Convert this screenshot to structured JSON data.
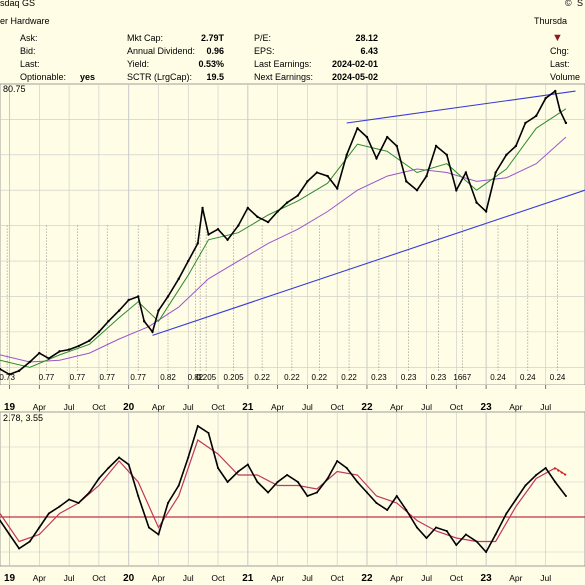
{
  "header": {
    "exchange": "sdaq GS",
    "sector": "er Hardware",
    "right_title": "Thursda",
    "chg_label": "Chg:",
    "last_label_r": "Last:",
    "volume_label": "Volume",
    "col1": [
      {
        "label": "Ask:",
        "value": ""
      },
      {
        "label": "Bid:",
        "value": ""
      },
      {
        "label": "Last:",
        "value": ""
      },
      {
        "label": "Optionable:",
        "value": "yes"
      }
    ],
    "col2": [
      {
        "label": "Mkt Cap:",
        "value": "2.79T"
      },
      {
        "label": "Annual Dividend:",
        "value": "0.96"
      },
      {
        "label": "Yield:",
        "value": "0.53%"
      },
      {
        "label": "SCTR (LrgCap):",
        "value": "19.5"
      }
    ],
    "col3": [
      {
        "label": "P/E:",
        "value": "28.12"
      },
      {
        "label": "EPS:",
        "value": "6.43"
      },
      {
        "label": "Last Earnings:",
        "value": "2024-02-01"
      },
      {
        "label": "Next Earnings:",
        "value": "2024-05-02"
      }
    ],
    "copyright_glyph": "©",
    "corner_s": "S"
  },
  "chart_data": [
    {
      "type": "line",
      "panel": "price",
      "legend_text": "80.75",
      "x_unit": "fractional year",
      "close": {
        "x": [
          2018.92,
          2019.0,
          2019.08,
          2019.17,
          2019.25,
          2019.33,
          2019.42,
          2019.5,
          2019.58,
          2019.67,
          2019.75,
          2019.83,
          2019.92,
          2020.0,
          2020.08,
          2020.13,
          2020.2,
          2020.25,
          2020.33,
          2020.42,
          2020.5,
          2020.58,
          2020.62,
          2020.67,
          2020.75,
          2020.83,
          2020.92,
          2021.0,
          2021.08,
          2021.17,
          2021.25,
          2021.33,
          2021.42,
          2021.5,
          2021.58,
          2021.67,
          2021.75,
          2021.83,
          2021.92,
          2022.0,
          2022.08,
          2022.17,
          2022.25,
          2022.33,
          2022.42,
          2022.5,
          2022.58,
          2022.67,
          2022.75,
          2022.83,
          2022.92,
          2023.0,
          2023.08,
          2023.17,
          2023.25,
          2023.33,
          2023.42,
          2023.5,
          2023.58,
          2023.62,
          2023.67
        ],
        "y": [
          39,
          36,
          38,
          43,
          48,
          45,
          49,
          50,
          52,
          55,
          60,
          66,
          72,
          78,
          80,
          66,
          60,
          72,
          80,
          90,
          100,
          110,
          130,
          115,
          118,
          112,
          120,
          130,
          125,
          122,
          128,
          133,
          137,
          145,
          150,
          148,
          141,
          160,
          175,
          170,
          158,
          170,
          165,
          145,
          140,
          148,
          165,
          160,
          140,
          150,
          133,
          128,
          150,
          160,
          165,
          178,
          182,
          192,
          196,
          185,
          178
        ]
      },
      "sma50": {
        "x": [
          2018.92,
          2019.17,
          2019.42,
          2019.67,
          2019.92,
          2020.08,
          2020.25,
          2020.5,
          2020.67,
          2020.92,
          2021.17,
          2021.42,
          2021.67,
          2021.92,
          2022.17,
          2022.42,
          2022.67,
          2022.92,
          2023.17,
          2023.42,
          2023.67
        ],
        "y": [
          44,
          40,
          47,
          53,
          68,
          77,
          66,
          92,
          112,
          116,
          126,
          134,
          144,
          166,
          162,
          150,
          155,
          140,
          152,
          175,
          186
        ]
      },
      "sma200": {
        "x": [
          2018.92,
          2019.17,
          2019.42,
          2019.67,
          2019.92,
          2020.17,
          2020.42,
          2020.67,
          2020.92,
          2021.17,
          2021.42,
          2021.67,
          2021.92,
          2022.17,
          2022.42,
          2022.67,
          2022.92,
          2023.17,
          2023.42,
          2023.67
        ],
        "y": [
          47,
          43,
          44,
          48,
          56,
          63,
          74,
          90,
          100,
          110,
          118,
          128,
          140,
          148,
          152,
          150,
          145,
          147,
          155,
          170
        ]
      },
      "trendlines": [
        {
          "x": [
            2020.2,
            2023.83
          ],
          "y": [
            58,
            140
          ]
        },
        {
          "x": [
            2021.83,
            2023.75
          ],
          "y": [
            178,
            196
          ]
        }
      ],
      "dividends": [
        {
          "x": 2018.98,
          "label": "0.73"
        },
        {
          "x": 2019.31,
          "label": "0.77"
        },
        {
          "x": 2019.57,
          "label": "0.77"
        },
        {
          "x": 2019.82,
          "label": "0.77"
        },
        {
          "x": 2020.08,
          "label": "0.77"
        },
        {
          "x": 2020.33,
          "label": "0.82"
        },
        {
          "x": 2020.56,
          "label": "0.82"
        },
        {
          "x": 2020.6,
          "label": "1"
        },
        {
          "x": 2020.65,
          "label": "0.205"
        },
        {
          "x": 2020.88,
          "label": "0.205"
        },
        {
          "x": 2021.12,
          "label": "0.22"
        },
        {
          "x": 2021.37,
          "label": "0.22"
        },
        {
          "x": 2021.6,
          "label": "0.22"
        },
        {
          "x": 2021.85,
          "label": "0.22"
        },
        {
          "x": 2022.1,
          "label": "0.23"
        },
        {
          "x": 2022.35,
          "label": "0.23"
        },
        {
          "x": 2022.6,
          "label": "0.23"
        },
        {
          "x": 2022.8,
          "label": "1667"
        },
        {
          "x": 2023.1,
          "label": "0.24"
        },
        {
          "x": 2023.35,
          "label": "0.24"
        },
        {
          "x": 2023.6,
          "label": "0.24"
        }
      ],
      "ylim": [
        30,
        200
      ]
    },
    {
      "type": "line",
      "panel": "indicator",
      "legend_text": "2.78, 3.55",
      "macd": {
        "x": [
          2018.92,
          2019.0,
          2019.08,
          2019.17,
          2019.25,
          2019.33,
          2019.42,
          2019.5,
          2019.58,
          2019.67,
          2019.75,
          2019.83,
          2019.92,
          2020.0,
          2020.08,
          2020.17,
          2020.25,
          2020.33,
          2020.42,
          2020.5,
          2020.58,
          2020.67,
          2020.75,
          2020.83,
          2020.92,
          2021.0,
          2021.08,
          2021.17,
          2021.25,
          2021.33,
          2021.42,
          2021.5,
          2021.58,
          2021.67,
          2021.75,
          2021.83,
          2021.92,
          2022.0,
          2022.08,
          2022.17,
          2022.25,
          2022.33,
          2022.42,
          2022.5,
          2022.58,
          2022.67,
          2022.75,
          2022.83,
          2022.92,
          2023.0,
          2023.08,
          2023.17,
          2023.25,
          2023.33,
          2023.42,
          2023.5,
          2023.58,
          2023.67
        ],
        "y": [
          -1,
          -5,
          -9,
          -7,
          -3,
          1,
          3,
          5,
          4,
          7,
          11,
          14,
          17,
          15,
          6,
          -3,
          -5,
          4,
          9,
          17,
          26,
          24,
          14,
          10,
          13,
          15,
          10,
          7,
          10,
          12,
          10,
          6,
          7,
          11,
          16,
          14,
          10,
          7,
          4,
          2,
          6,
          2,
          -3,
          -6,
          -3,
          -4,
          -8,
          -5,
          -7,
          -10,
          -5,
          1,
          5,
          9,
          12,
          14,
          10,
          6
        ]
      },
      "signal": {
        "x": [
          2018.92,
          2019.08,
          2019.25,
          2019.42,
          2019.58,
          2019.75,
          2019.92,
          2020.08,
          2020.25,
          2020.42,
          2020.58,
          2020.75,
          2020.92,
          2021.08,
          2021.25,
          2021.42,
          2021.58,
          2021.75,
          2021.92,
          2022.08,
          2022.25,
          2022.42,
          2022.58,
          2022.75,
          2022.92,
          2023.08,
          2023.25,
          2023.42,
          2023.58,
          2023.67
        ],
        "y": [
          1,
          -7,
          -5,
          1,
          4,
          9,
          16,
          10,
          -3,
          6,
          22,
          18,
          12,
          12,
          9,
          9,
          8,
          13,
          12,
          6,
          4,
          -1,
          -4,
          -6,
          -7,
          -7,
          3,
          11,
          14,
          12
        ]
      },
      "dotted": {
        "x": [
          2023.57,
          2023.67
        ],
        "y": [
          14,
          12
        ]
      },
      "zero_line": 0,
      "ylim": [
        -14,
        30
      ]
    }
  ],
  "x_ticks": [
    {
      "x": 2019.0,
      "label": "19",
      "major": true
    },
    {
      "x": 2019.25,
      "label": "Apr",
      "major": false
    },
    {
      "x": 2019.5,
      "label": "Jul",
      "major": false
    },
    {
      "x": 2019.75,
      "label": "Oct",
      "major": false
    },
    {
      "x": 2020.0,
      "label": "20",
      "major": true
    },
    {
      "x": 2020.25,
      "label": "Apr",
      "major": false
    },
    {
      "x": 2020.5,
      "label": "Jul",
      "major": false
    },
    {
      "x": 2020.75,
      "label": "Oct",
      "major": false
    },
    {
      "x": 2021.0,
      "label": "21",
      "major": true
    },
    {
      "x": 2021.25,
      "label": "Apr",
      "major": false
    },
    {
      "x": 2021.5,
      "label": "Jul",
      "major": false
    },
    {
      "x": 2021.75,
      "label": "Oct",
      "major": false
    },
    {
      "x": 2022.0,
      "label": "22",
      "major": true
    },
    {
      "x": 2022.25,
      "label": "Apr",
      "major": false
    },
    {
      "x": 2022.5,
      "label": "Jul",
      "major": false
    },
    {
      "x": 2022.75,
      "label": "Oct",
      "major": false
    },
    {
      "x": 2023.0,
      "label": "23",
      "major": true
    },
    {
      "x": 2023.25,
      "label": "Apr",
      "major": false
    },
    {
      "x": 2023.5,
      "label": "Jul",
      "major": false
    }
  ],
  "colors": {
    "background": "#fffde6",
    "grid": "#c9c9c9",
    "price": "#000000",
    "sma50": "#2e8b2e",
    "sma200": "#9a55cc",
    "trendline": "#3a3ad6",
    "signal": "#c0385a",
    "zero": "#b00020",
    "marker": "#a01020"
  }
}
